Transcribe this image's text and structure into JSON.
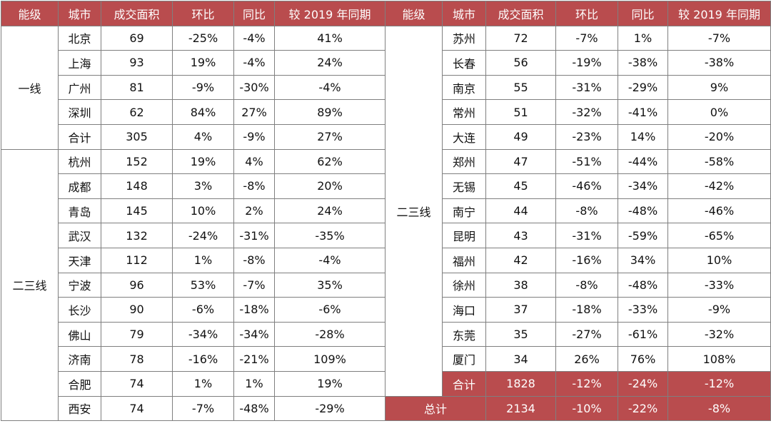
{
  "headers": [
    "能级",
    "城市",
    "成交面积",
    "环比",
    "同比",
    "较 2019 年同期"
  ],
  "left": {
    "tier1": {
      "label": "一线",
      "rows": [
        [
          "北京",
          "69",
          "-25%",
          "-4%",
          "41%"
        ],
        [
          "上海",
          "93",
          "19%",
          "-4%",
          "24%"
        ],
        [
          "广州",
          "81",
          "-9%",
          "-30%",
          "-4%"
        ],
        [
          "深圳",
          "62",
          "84%",
          "27%",
          "89%"
        ],
        [
          "合计",
          "305",
          "4%",
          "-9%",
          "27%"
        ]
      ]
    },
    "tier23": {
      "label": "二三线",
      "rows": [
        [
          "杭州",
          "152",
          "19%",
          "4%",
          "62%"
        ],
        [
          "成都",
          "148",
          "3%",
          "-8%",
          "20%"
        ],
        [
          "青岛",
          "145",
          "10%",
          "2%",
          "24%"
        ],
        [
          "武汉",
          "132",
          "-24%",
          "-31%",
          "-35%"
        ],
        [
          "天津",
          "112",
          "1%",
          "-8%",
          "-4%"
        ],
        [
          "宁波",
          "96",
          "53%",
          "-7%",
          "35%"
        ],
        [
          "长沙",
          "90",
          "-6%",
          "-18%",
          "-6%"
        ],
        [
          "佛山",
          "79",
          "-34%",
          "-34%",
          "-28%"
        ],
        [
          "济南",
          "78",
          "-16%",
          "-21%",
          "109%"
        ],
        [
          "合肥",
          "74",
          "1%",
          "1%",
          "19%"
        ],
        [
          "西安",
          "74",
          "-7%",
          "-48%",
          "-29%"
        ]
      ]
    }
  },
  "right": {
    "label": "二三线",
    "rows": [
      [
        "苏州",
        "72",
        "-7%",
        "1%",
        "-7%"
      ],
      [
        "长春",
        "56",
        "-19%",
        "-38%",
        "-38%"
      ],
      [
        "南京",
        "55",
        "-31%",
        "-29%",
        "9%"
      ],
      [
        "常州",
        "51",
        "-32%",
        "-41%",
        "0%"
      ],
      [
        "大连",
        "49",
        "-23%",
        "14%",
        "-20%"
      ],
      [
        "郑州",
        "47",
        "-51%",
        "-44%",
        "-58%"
      ],
      [
        "无锡",
        "45",
        "-46%",
        "-34%",
        "-42%"
      ],
      [
        "南宁",
        "44",
        "-8%",
        "-48%",
        "-46%"
      ],
      [
        "昆明",
        "43",
        "-31%",
        "-59%",
        "-65%"
      ],
      [
        "福州",
        "42",
        "-16%",
        "34%",
        "10%"
      ],
      [
        "徐州",
        "38",
        "-8%",
        "-48%",
        "-33%"
      ],
      [
        "海口",
        "37",
        "-18%",
        "-33%",
        "-9%"
      ],
      [
        "东莞",
        "35",
        "-27%",
        "-61%",
        "-32%"
      ],
      [
        "厦门",
        "34",
        "26%",
        "76%",
        "108%"
      ]
    ],
    "subtotal": [
      "合计",
      "1828",
      "-12%",
      "-24%",
      "-12%"
    ],
    "total": [
      "总计",
      "2134",
      "-10%",
      "-22%",
      "-8%"
    ]
  },
  "colors": {
    "header_bg": "#b94c4e",
    "header_text": "#ffffff",
    "border": "#7f7f7f"
  }
}
